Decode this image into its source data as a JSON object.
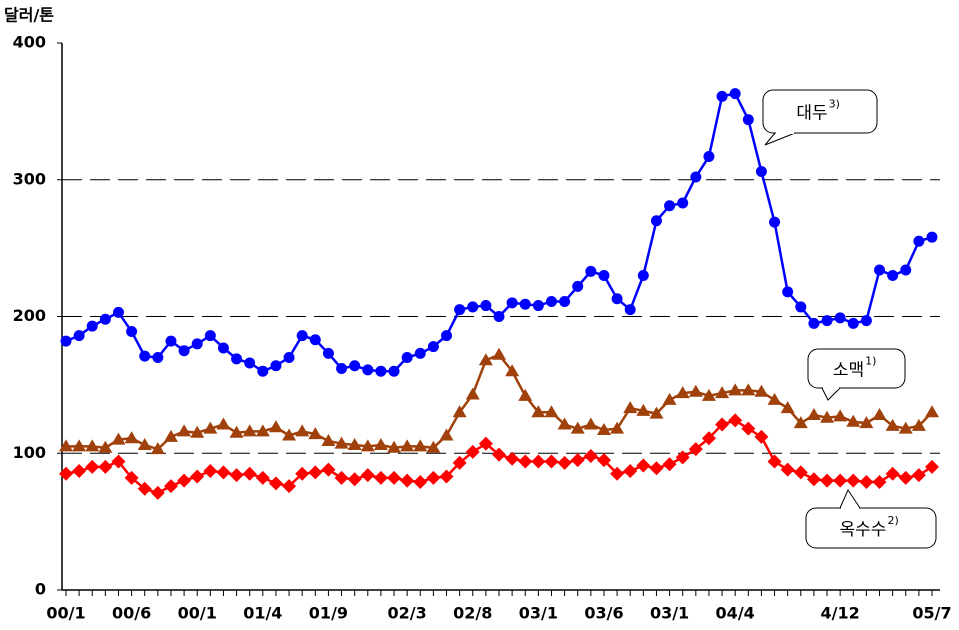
{
  "chart_data": {
    "type": "line",
    "y_label": "달러/톤",
    "categories": [
      "00/1",
      null,
      null,
      null,
      null,
      "00/6",
      null,
      null,
      null,
      null,
      "00/1",
      null,
      null,
      null,
      null,
      "01/4",
      null,
      null,
      null,
      null,
      "01/9",
      null,
      null,
      null,
      null,
      null,
      "02/3",
      null,
      null,
      null,
      null,
      "02/8",
      null,
      null,
      null,
      null,
      "03/1",
      null,
      null,
      null,
      null,
      "03/6",
      null,
      null,
      null,
      null,
      "03/1",
      null,
      null,
      null,
      null,
      "04/4",
      null,
      null,
      null,
      null,
      null,
      null,
      null,
      "4/12",
      null,
      null,
      null,
      null,
      null,
      null,
      "05/7"
    ],
    "ylim": [
      0,
      400
    ],
    "yticks": [
      0,
      100,
      200,
      300,
      400
    ],
    "grid": true,
    "series": [
      {
        "name": "대두",
        "note": "3)",
        "color": "#0000ff",
        "marker": "circle",
        "values": [
          182,
          186,
          193,
          198,
          203,
          189,
          171,
          170,
          182,
          175,
          180,
          186,
          177,
          169,
          166,
          160,
          164,
          170,
          186,
          183,
          173,
          162,
          164,
          161,
          160,
          160,
          170,
          173,
          178,
          186,
          205,
          207,
          208,
          200,
          210,
          209,
          208,
          211,
          211,
          222,
          233,
          230,
          213,
          205,
          230,
          270,
          281,
          283,
          302,
          317,
          361,
          363,
          344,
          306,
          269,
          218,
          207,
          195,
          197,
          199,
          195,
          197,
          234,
          230,
          234,
          255,
          258
        ]
      },
      {
        "name": "소맥",
        "note": "1)",
        "color": "#a0400a",
        "marker": "triangle",
        "values": [
          105,
          105,
          105,
          104,
          110,
          111,
          106,
          103,
          112,
          116,
          115,
          118,
          121,
          115,
          116,
          116,
          119,
          113,
          116,
          114,
          109,
          107,
          106,
          105,
          106,
          104,
          105,
          105,
          104,
          113,
          130,
          143,
          168,
          172,
          160,
          142,
          130,
          130,
          121,
          118,
          121,
          117,
          118,
          133,
          131,
          129,
          139,
          144,
          145,
          142,
          144,
          146,
          146,
          145,
          139,
          133,
          122,
          128,
          126,
          127,
          123,
          122,
          128,
          120,
          118,
          120,
          130
        ]
      },
      {
        "name": "옥수수",
        "note": "2)",
        "color": "#ff0000",
        "marker": "diamond",
        "values": [
          85,
          87,
          90,
          90,
          94,
          82,
          74,
          71,
          76,
          80,
          83,
          87,
          86,
          84,
          85,
          82,
          78,
          76,
          85,
          86,
          88,
          82,
          81,
          84,
          82,
          82,
          80,
          79,
          82,
          83,
          93,
          101,
          107,
          99,
          96,
          94,
          94,
          94,
          93,
          95,
          98,
          95,
          85,
          87,
          91,
          89,
          92,
          97,
          103,
          111,
          121,
          124,
          118,
          112,
          94,
          88,
          86,
          81,
          80,
          80,
          80,
          79,
          79,
          85,
          82,
          84,
          90
        ]
      }
    ]
  }
}
